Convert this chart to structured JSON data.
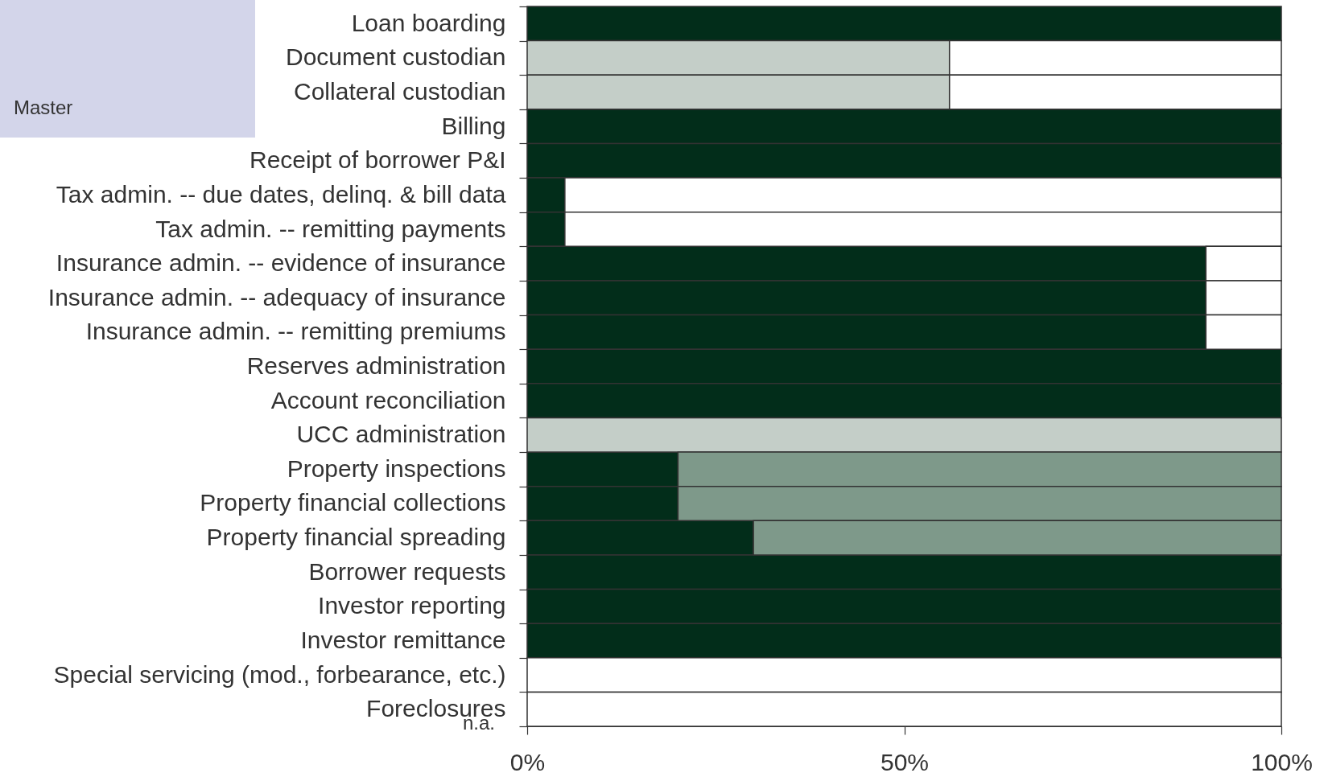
{
  "chart_data": {
    "type": "bar",
    "orientation": "horizontal",
    "stacked": true,
    "categories": [
      "Loan boarding",
      "Document custodian",
      "Collateral custodian",
      "Billing",
      "Receipt of borrower P&I",
      "Tax admin. -- due dates, delinq. & bill data",
      "Tax admin. -- remitting payments",
      "Insurance admin. -- evidence of insurance",
      "Insurance admin. -- adequacy of insurance",
      "Insurance admin. -- remitting premiums",
      "Reserves administration",
      "Account reconciliation",
      "UCC administration",
      "Property inspections",
      "Property financial collections",
      "Property financial spreading",
      "Borrower requests",
      "Investor reporting",
      "Investor remittance",
      "Special servicing (mod., forbearance, etc.)",
      "Foreclosures"
    ],
    "series": [
      {
        "color": "#022d1a",
        "values": [
          100,
          null,
          null,
          100,
          100,
          5,
          5,
          90,
          90,
          90,
          100,
          100,
          null,
          20,
          20,
          30,
          100,
          100,
          100,
          null,
          null
        ]
      },
      {
        "color": "#c4cec8",
        "values": [
          null,
          56,
          56,
          null,
          null,
          null,
          null,
          null,
          null,
          null,
          null,
          null,
          100,
          null,
          null,
          null,
          null,
          null,
          null,
          null,
          null
        ]
      },
      {
        "color": "#7e998a",
        "values": [
          null,
          null,
          null,
          null,
          null,
          null,
          null,
          null,
          null,
          null,
          null,
          null,
          null,
          80,
          80,
          70,
          null,
          null,
          null,
          null,
          null
        ]
      },
      {
        "color": "#ffffff",
        "values": [
          null,
          44,
          44,
          null,
          null,
          95,
          95,
          10,
          10,
          10,
          null,
          null,
          null,
          null,
          null,
          null,
          null,
          null,
          null,
          100,
          100
        ]
      }
    ],
    "xlim": [
      0,
      100
    ],
    "xticks": [
      {
        "value": 0,
        "label": "0%"
      },
      {
        "value": 50,
        "label": "50%"
      },
      {
        "value": 100,
        "label": "100%"
      }
    ],
    "grid": false,
    "annotations": [
      "Master",
      {
        "text": "n.a.",
        "x": 0,
        "y": "Foreclosures"
      }
    ]
  }
}
